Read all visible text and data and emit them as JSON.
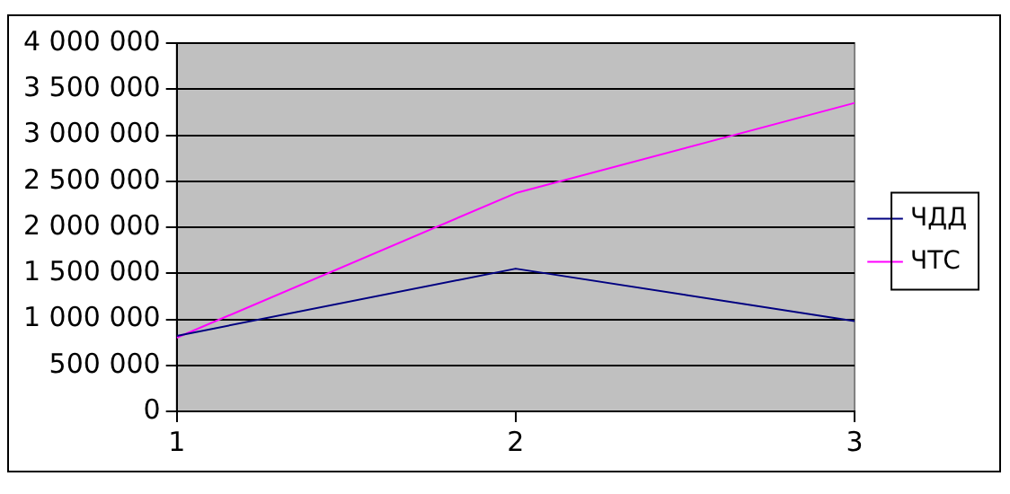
{
  "chart_data": {
    "type": "line",
    "x": [
      1,
      2,
      3
    ],
    "series": [
      {
        "name": "ЧДД",
        "color": "#000080",
        "values": [
          820000,
          1550000,
          980000
        ]
      },
      {
        "name": "ЧТС",
        "color": "#ff00ff",
        "values": [
          800000,
          2370000,
          3350000
        ]
      }
    ],
    "xlim": [
      1,
      3
    ],
    "xticks": [
      1,
      2,
      3
    ],
    "ylim": [
      0,
      4000000
    ],
    "yticks": [
      0,
      {
        "value": 500000,
        "label": "500 000"
      },
      {
        "value": 1000000,
        "label": "1 000 000"
      },
      {
        "value": 1500000,
        "label": "1 500 000"
      },
      {
        "value": 2000000,
        "label": "2 000 000"
      },
      {
        "value": 2500000,
        "label": "2 500 000"
      },
      {
        "value": 3000000,
        "label": "3 000 000"
      },
      {
        "value": 3500000,
        "label": "3 500 000"
      },
      {
        "value": 4000000,
        "label": "4 000 000"
      }
    ],
    "grid": "y",
    "legend": "right",
    "marker": "none",
    "line_style": "solid"
  }
}
